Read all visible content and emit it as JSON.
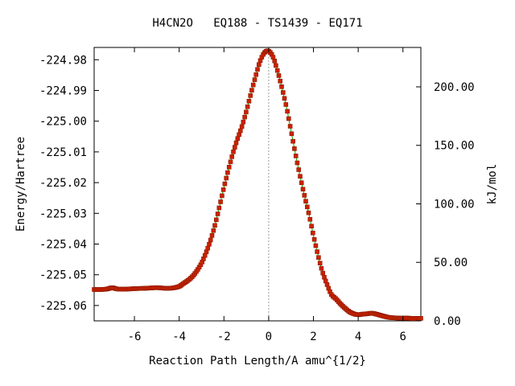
{
  "chart_data": {
    "type": "line",
    "title": "H4CN2O   EQ188 - TS1439 - EQ171",
    "xlabel": "Reaction Path Length/A amu^{1/2}",
    "ylabel": "Energy/Hartree",
    "y2label": "kJ/mol",
    "xlim": [
      -7.8,
      6.8
    ],
    "ylim": [
      -225.065,
      -224.976
    ],
    "y2lim": [
      0.0,
      233.67
    ],
    "x_ticks": [
      -6,
      -4,
      -2,
      0,
      2,
      4,
      6
    ],
    "x_tick_labels": [
      "-6",
      "-4",
      "-2",
      "0",
      "2",
      "4",
      "6"
    ],
    "y_ticks": [
      -224.98,
      -224.99,
      -225.0,
      -225.01,
      -225.02,
      -225.03,
      -225.04,
      -225.05,
      -225.06
    ],
    "y_tick_labels": [
      "-224.98",
      "-224.99",
      "-225.00",
      "-225.01",
      "-225.02",
      "-225.03",
      "-225.04",
      "-225.05",
      "-225.06"
    ],
    "y2_ticks": [
      0,
      50,
      100,
      150,
      200
    ],
    "y2_tick_labels": [
      "0.00",
      "50.00",
      "100.00",
      "150.00",
      "200.00"
    ],
    "ts_marker_x": 0,
    "grid": false,
    "colors": {
      "curve": "#00aa00",
      "markers": "#cc2200",
      "marker_edge": "#8b1a00",
      "ts_line": "#999999",
      "axes": "#000000"
    },
    "series": [
      {
        "x": [
          -7.8,
          -7.5,
          -7.2,
          -7.0,
          -6.8,
          -6.5,
          -6.2,
          -6.0,
          -5.5,
          -5.0,
          -4.6,
          -4.3,
          -4.0,
          -3.8,
          -3.6,
          -3.4,
          -3.2,
          -3.0,
          -2.8,
          -2.6,
          -2.4,
          -2.2,
          -2.0,
          -1.8,
          -1.6,
          -1.4,
          -1.2,
          -1.0,
          -0.8,
          -0.6,
          -0.4,
          -0.2,
          0.0,
          0.2,
          0.4,
          0.6,
          0.8,
          1.0,
          1.2,
          1.4,
          1.6,
          1.8,
          2.0,
          2.2,
          2.4,
          2.6,
          2.8,
          3.0,
          3.2,
          3.4,
          3.6,
          3.8,
          4.0,
          4.2,
          4.4,
          4.6,
          4.8,
          5.0,
          5.2,
          5.4,
          5.6,
          5.8,
          6.0,
          6.2,
          6.4,
          6.6,
          6.8
        ],
        "y": [
          -225.0548,
          -225.0548,
          -225.0546,
          -225.0542,
          -225.0546,
          -225.0547,
          -225.0546,
          -225.0545,
          -225.0544,
          -225.0542,
          -225.0544,
          -225.0543,
          -225.0538,
          -225.0528,
          -225.0518,
          -225.0505,
          -225.0486,
          -225.0462,
          -225.0428,
          -225.0388,
          -225.0338,
          -225.0278,
          -225.0216,
          -225.0158,
          -225.0105,
          -225.0059,
          -225.0018,
          -224.9968,
          -224.9912,
          -224.9858,
          -224.9808,
          -224.9778,
          -224.9772,
          -224.9792,
          -224.9838,
          -224.9894,
          -224.9956,
          -225.0032,
          -225.0108,
          -225.0178,
          -225.0243,
          -225.0303,
          -225.0372,
          -225.0435,
          -225.049,
          -225.053,
          -225.0564,
          -225.0578,
          -225.0594,
          -225.0608,
          -225.062,
          -225.0627,
          -225.063,
          -225.0628,
          -225.0627,
          -225.0625,
          -225.0628,
          -225.0632,
          -225.0636,
          -225.0639,
          -225.064,
          -225.0641,
          -225.0641,
          -225.0641,
          -225.0642,
          -225.0642,
          -225.0642
        ]
      }
    ]
  }
}
